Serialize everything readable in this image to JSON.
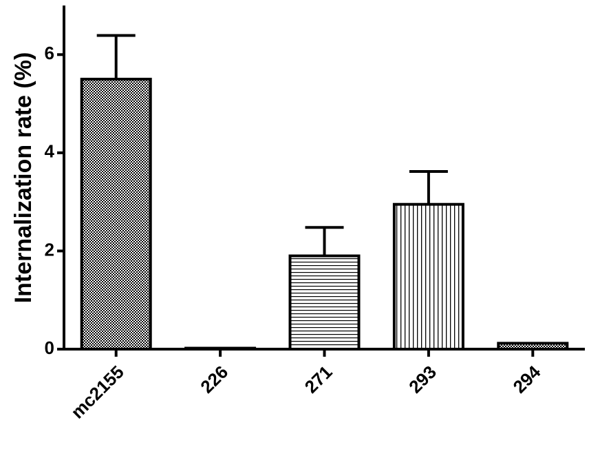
{
  "chart_data": {
    "type": "bar",
    "y_label": "Internalization rate (%)",
    "categories": [
      "mc2155",
      "226",
      "271",
      "293",
      "294"
    ],
    "values": [
      5.5,
      0.02,
      1.9,
      2.95,
      0.12
    ],
    "errors": [
      0.89,
      null,
      0.58,
      0.67,
      null
    ],
    "patterns": [
      "checker",
      "checker",
      "horizontal",
      "vertical",
      "checker"
    ],
    "color": "#000000",
    "ylim": [
      0,
      7
    ],
    "yticks": [
      0,
      2,
      4,
      6
    ],
    "grid": false
  }
}
